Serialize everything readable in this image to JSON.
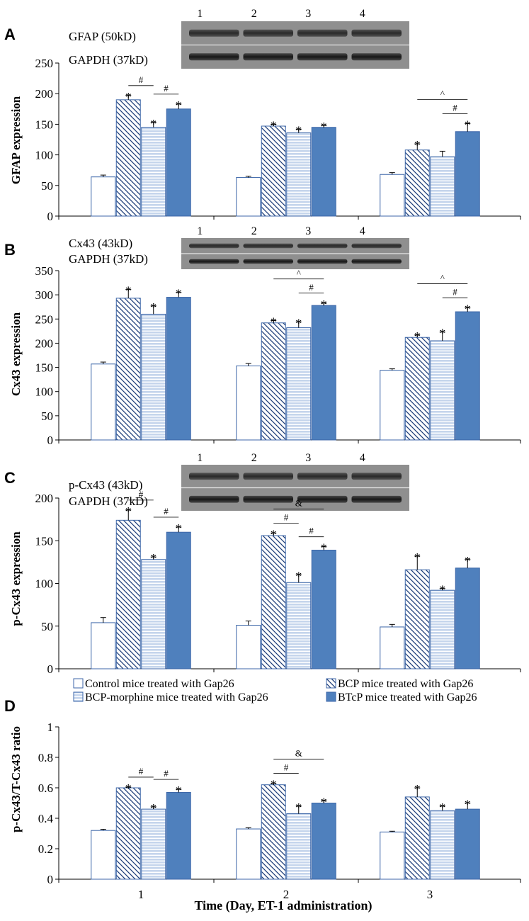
{
  "colors": {
    "control": "#ffffff",
    "bcp_hatch": "#1f3f7a",
    "morphine_fill": "#c5d5ec",
    "morphine_stripe": "#ffffff",
    "btcp": "#4f80bd",
    "outline": "#3c66a8",
    "blot_bg": "#8f8f8f"
  },
  "figure": {
    "xlabel": "Time (Day, ET-1 administration)",
    "legend": [
      {
        "key": "control",
        "label": "Control mice treated with Gap26"
      },
      {
        "key": "bcp",
        "label": "BCP mice treated with Gap26"
      },
      {
        "key": "morphine",
        "label": "BCP-morphine mice treated with Gap26"
      },
      {
        "key": "btcp",
        "label": "BTcP mice treated with Gap26"
      }
    ]
  },
  "chart_data": [
    {
      "panel": "A",
      "type": "bar",
      "ylabel": "GFAP expression",
      "ylim": [
        0,
        250
      ],
      "yticks": [
        0,
        50,
        100,
        150,
        200,
        250
      ],
      "categories": [
        "1",
        "2",
        "3"
      ],
      "show_xticks": false,
      "blot": {
        "lanes": [
          "1",
          "2",
          "3",
          "4"
        ],
        "bands": [
          "GFAP (50kD)",
          "GAPDH (37kD)"
        ]
      },
      "series": [
        {
          "name": "Control mice treated with Gap26",
          "values": [
            64,
            63,
            68
          ],
          "errors": [
            3,
            2,
            3
          ],
          "star": [
            false,
            false,
            false
          ]
        },
        {
          "name": "BCP mice treated with Gap26",
          "values": [
            190,
            147,
            108
          ],
          "errors": [
            7,
            3,
            10
          ],
          "star": [
            true,
            true,
            true
          ]
        },
        {
          "name": "BCP-morphine mice treated with Gap26",
          "values": [
            145,
            136,
            97
          ],
          "errors": [
            8,
            6,
            9
          ],
          "star": [
            true,
            true,
            false
          ]
        },
        {
          "name": "BTcP mice treated with Gap26",
          "values": [
            175,
            145,
            138
          ],
          "errors": [
            8,
            3,
            13
          ],
          "star": [
            true,
            true,
            true
          ]
        }
      ],
      "sig": [
        {
          "cat": 0,
          "from": 1,
          "to": 2,
          "label": "#",
          "level": 1
        },
        {
          "cat": 0,
          "from": 2,
          "to": 3,
          "label": "#",
          "level": 1
        },
        {
          "cat": 2,
          "from": 1,
          "to": 3,
          "label": "^",
          "level": 2
        },
        {
          "cat": 2,
          "from": 2,
          "to": 3,
          "label": "#",
          "level": 1
        }
      ]
    },
    {
      "panel": "B",
      "type": "bar",
      "ylabel": "Cx43 expression",
      "ylim": [
        0,
        350
      ],
      "yticks": [
        0,
        50,
        100,
        150,
        200,
        250,
        300,
        350
      ],
      "categories": [
        "1",
        "2",
        "3"
      ],
      "show_xticks": false,
      "blot": {
        "lanes": [
          "1",
          "2",
          "3",
          "4"
        ],
        "bands": [
          "Cx43 (43kD)",
          "GAPDH (37kD)"
        ]
      },
      "series": [
        {
          "name": "Control mice treated with Gap26",
          "values": [
            157,
            153,
            144
          ],
          "errors": [
            4,
            5,
            3
          ],
          "star": [
            false,
            false,
            false
          ]
        },
        {
          "name": "BCP mice treated with Gap26",
          "values": [
            293,
            242,
            212
          ],
          "errors": [
            18,
            5,
            5
          ],
          "star": [
            true,
            true,
            true
          ]
        },
        {
          "name": "BCP-morphine mice treated with Gap26",
          "values": [
            260,
            232,
            205
          ],
          "errors": [
            17,
            12,
            18
          ],
          "star": [
            true,
            true,
            true
          ]
        },
        {
          "name": "BTcP mice treated with Gap26",
          "values": [
            295,
            278,
            265
          ],
          "errors": [
            10,
            5,
            8
          ],
          "star": [
            true,
            true,
            true
          ]
        }
      ],
      "sig": [
        {
          "cat": 1,
          "from": 1,
          "to": 3,
          "label": "^",
          "level": 2
        },
        {
          "cat": 1,
          "from": 2,
          "to": 3,
          "label": "#",
          "level": 1
        },
        {
          "cat": 2,
          "from": 1,
          "to": 3,
          "label": "^",
          "level": 2
        },
        {
          "cat": 2,
          "from": 2,
          "to": 3,
          "label": "#",
          "level": 1
        }
      ]
    },
    {
      "panel": "C",
      "type": "bar",
      "ylabel": "p-Cx43 expression",
      "ylim": [
        0,
        200
      ],
      "yticks": [
        0,
        50,
        100,
        150,
        200
      ],
      "categories": [
        "1",
        "2",
        "3"
      ],
      "show_xticks": false,
      "blot": {
        "lanes": [
          "1",
          "2",
          "3",
          "4"
        ],
        "bands": [
          "p-Cx43 (43kD)",
          "GAPDH (37kD)"
        ]
      },
      "series": [
        {
          "name": "Control mice treated with Gap26",
          "values": [
            54,
            51,
            49
          ],
          "errors": [
            6,
            5,
            3
          ],
          "star": [
            false,
            false,
            false
          ]
        },
        {
          "name": "BCP mice treated with Gap26",
          "values": [
            174,
            156,
            116
          ],
          "errors": [
            12,
            3,
            16
          ],
          "star": [
            true,
            true,
            true
          ]
        },
        {
          "name": "BCP-morphine mice treated with Gap26",
          "values": [
            128,
            101,
            92
          ],
          "errors": [
            3,
            9,
            2
          ],
          "star": [
            true,
            true,
            true
          ]
        },
        {
          "name": "BTcP mice treated with Gap26",
          "values": [
            160,
            139,
            118
          ],
          "errors": [
            6,
            4,
            10
          ],
          "star": [
            true,
            true,
            true
          ]
        }
      ],
      "sig": [
        {
          "cat": 0,
          "from": 1,
          "to": 2,
          "label": "#",
          "level": 1
        },
        {
          "cat": 0,
          "from": 2,
          "to": 3,
          "label": "#",
          "level": 1
        },
        {
          "cat": 1,
          "from": 1,
          "to": 3,
          "label": "&",
          "level": 2
        },
        {
          "cat": 1,
          "from": 1,
          "to": 2,
          "label": "#",
          "level": 1
        },
        {
          "cat": 1,
          "from": 2,
          "to": 3,
          "label": "#",
          "level": 1
        }
      ]
    },
    {
      "panel": "D",
      "type": "bar",
      "ylabel": "p-Cx43/T-Cx43 ratio",
      "ylim": [
        0,
        1
      ],
      "yticks": [
        0,
        0.2,
        0.4,
        0.6,
        0.8,
        1
      ],
      "ytick_labels": [
        "0",
        "0.2",
        "0.4",
        "0.6",
        "0.8",
        "1"
      ],
      "categories": [
        "1",
        "2",
        "3"
      ],
      "show_xticks": true,
      "series": [
        {
          "name": "Control mice treated with Gap26",
          "values": [
            0.32,
            0.33,
            0.31
          ],
          "errors": [
            0.008,
            0.008,
            0.005
          ],
          "star": [
            false,
            false,
            false
          ]
        },
        {
          "name": "BCP mice treated with Gap26",
          "values": [
            0.6,
            0.62,
            0.54
          ],
          "errors": [
            0.005,
            0.01,
            0.06
          ],
          "star": [
            true,
            true,
            true
          ]
        },
        {
          "name": "BCP-morphine mice treated with Gap26",
          "values": [
            0.46,
            0.43,
            0.45
          ],
          "errors": [
            0.015,
            0.05,
            0.03
          ],
          "star": [
            true,
            true,
            true
          ]
        },
        {
          "name": "BTcP mice treated with Gap26",
          "values": [
            0.57,
            0.5,
            0.46
          ],
          "errors": [
            0.02,
            0.015,
            0.04
          ],
          "star": [
            true,
            true,
            true
          ]
        }
      ],
      "sig": [
        {
          "cat": 0,
          "from": 1,
          "to": 2,
          "label": "#",
          "level": 1
        },
        {
          "cat": 0,
          "from": 2,
          "to": 3,
          "label": "#",
          "level": 1
        },
        {
          "cat": 1,
          "from": 1,
          "to": 3,
          "label": "&",
          "level": 2
        },
        {
          "cat": 1,
          "from": 1,
          "to": 2,
          "label": "#",
          "level": 1
        }
      ]
    }
  ]
}
